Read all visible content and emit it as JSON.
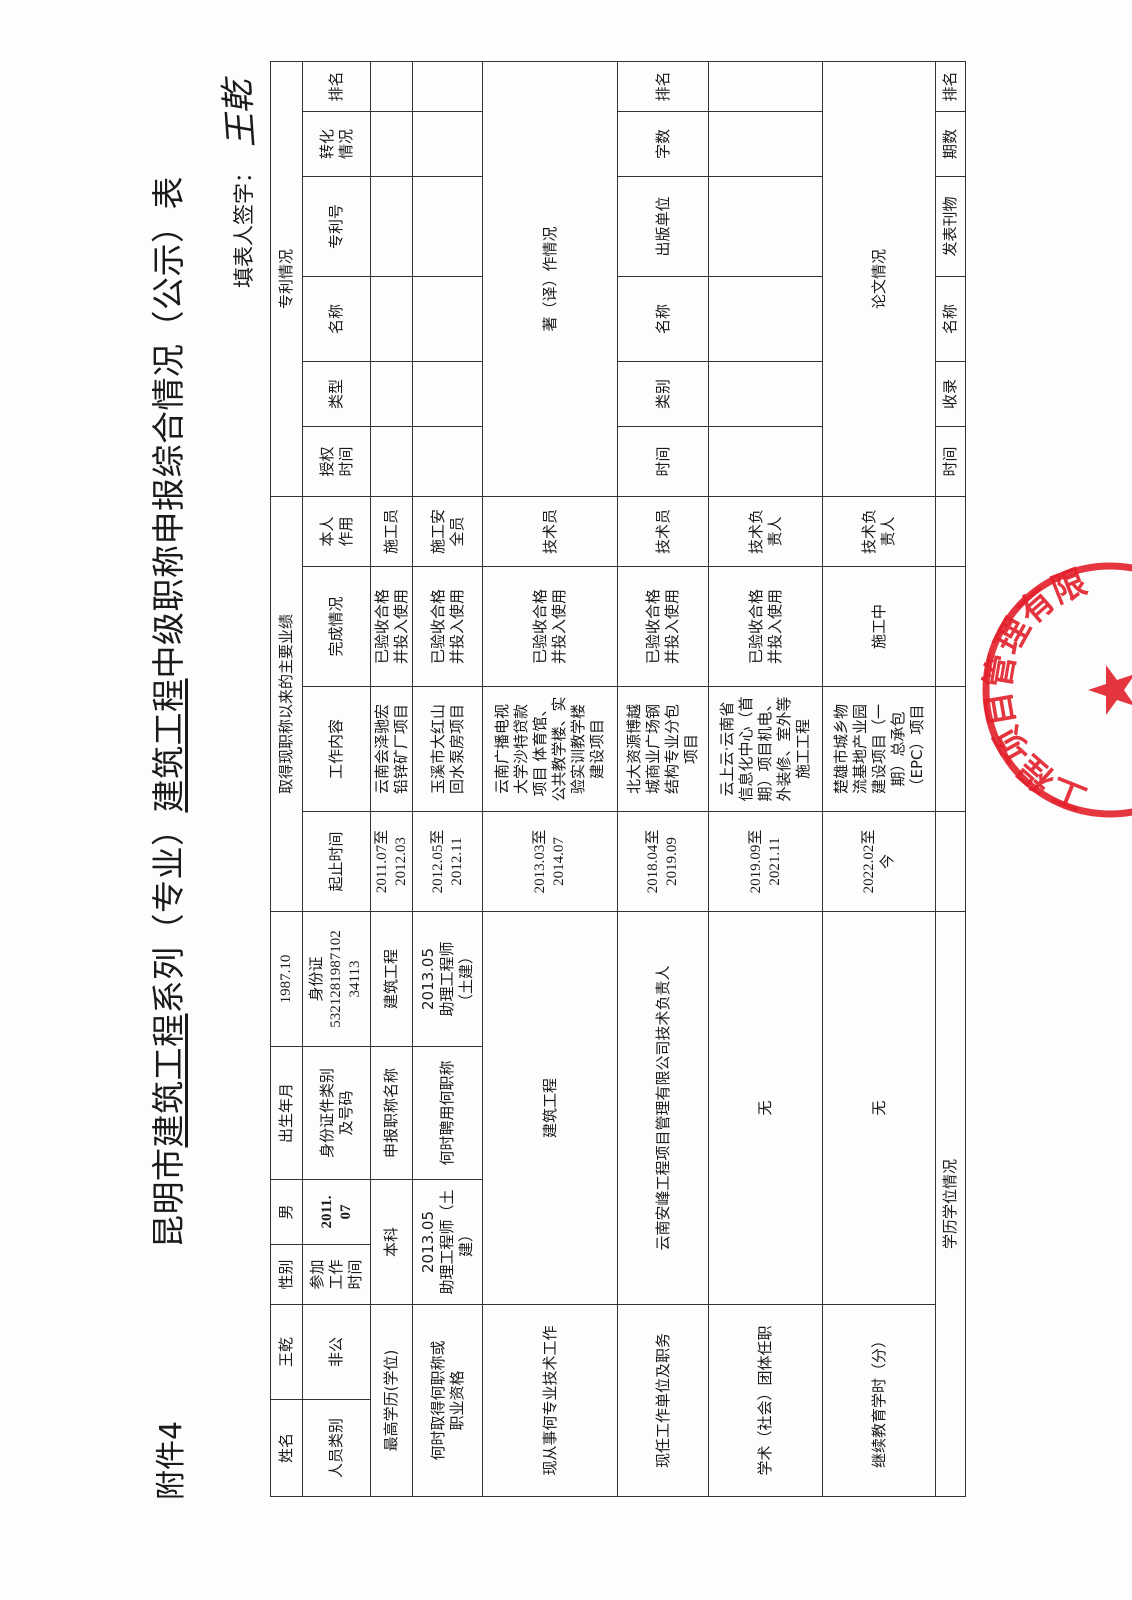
{
  "header": {
    "attachment": "附件4",
    "title_parts": [
      "昆明市",
      "建筑工程",
      "系列（专业）",
      "建筑工程",
      "中级职称申报综合情况（公示）表"
    ],
    "signer_label": "填表人签字：",
    "signature": "王乾"
  },
  "basic": {
    "name_label": "姓名",
    "name": "王乾",
    "gender_label": "性别",
    "gender": "男",
    "birth_label": "出生年月",
    "birth": "1987.10",
    "category_label": "人员类别",
    "category": "非公",
    "work_start_label": "参加\n工作\n时间",
    "work_start": "2011.\n07",
    "id_label": "身份证件类别\n及号码",
    "id_value": "身份证\n5321281987102\n34113",
    "education_label": "最高学历(学位)",
    "education": "本科",
    "apply_title_label": "申报职称名称",
    "apply_title": "建筑工程",
    "obtained_label": "何时取得何职称或\n职业资格",
    "obtained": "2013.05\n助理工程师（土建）",
    "hired_label": "何时聘用何职称",
    "hired": "2013.05\n助理工程师\n（土建）",
    "current_field_label": "现从事何专业技术工作",
    "current_field": "建筑工程",
    "employer_label": "现任工作单位及职务",
    "employer": "云南安峰工程项目管理有限公司技术负责人",
    "society_label": "学术（社会）团体任职",
    "society": "无",
    "cont_edu_label": "继续教育学时（分）",
    "cont_edu": "无",
    "degree_label": "学历学位情况"
  },
  "achievements": {
    "title": "取得现职称以来的主要业绩",
    "columns": [
      "起止时间",
      "工作内容",
      "完成情况",
      "本人\n作用"
    ],
    "rows": [
      {
        "period": "2011.07至\n2012.03",
        "content": "云南会泽驰宏\n铅锌矿厂项目",
        "status": "已验收合格\n并投入使用",
        "role": "施工员"
      },
      {
        "period": "2012.05至\n2012.11",
        "content": "玉溪市大红山\n回水泵房项目",
        "status": "已验收合格\n并投入使用",
        "role": "施工安\n全员"
      },
      {
        "period": "2013.03至\n2014.07",
        "content": "云南广播电视\n大学沙特贷款\n项目 体育馆、\n公共教学楼、实\n验实训教学楼\n建设项目",
        "status": "已验收合格\n并投入使用",
        "role": "技术员"
      },
      {
        "period": "2018.04至\n2019.09",
        "content": "北大资源博越\n城商业广场钢\n结构专业分包\n项目",
        "status": "已验收合格\n并投入使用",
        "role": "技术员"
      },
      {
        "period": "2019.09至\n2021.11",
        "content": "云上云·云南省\n信息化中心（首\n期）项目机电、\n外装修、室外等\n施工工程",
        "status": "已验收合格\n并投入使用",
        "role": "技术负\n责人"
      },
      {
        "period": "2022.02至\n今",
        "content": "楚雄市城乡物\n流基地产业园\n建设项目（一\n期）总承包\n（EPC）项目",
        "status": "施工中",
        "role": "技术负\n责人"
      }
    ]
  },
  "patents": {
    "title": "专利情况",
    "columns": [
      "授权\n时间",
      "类型",
      "名称",
      "专利号",
      "转化\n情况",
      "排名"
    ]
  },
  "books": {
    "title": "著（译）作情况",
    "columns": [
      "时间",
      "类别",
      "名称",
      "出版单位",
      "字数",
      "排名"
    ]
  },
  "papers": {
    "title": "论文情况",
    "columns": [
      "时间",
      "收录",
      "名称",
      "发表刊物",
      "期数",
      "排名"
    ]
  },
  "stamp": {
    "text": "工程项目管理有限",
    "color": "#e2202b"
  }
}
